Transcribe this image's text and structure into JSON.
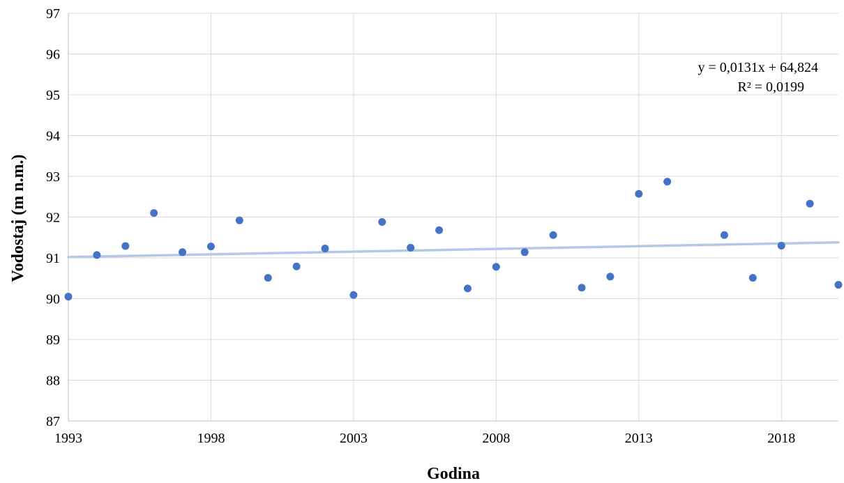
{
  "chart_data": {
    "type": "scatter",
    "xlabel": "Godina",
    "ylabel": "Vodostaj (m n.m.)",
    "xlim": [
      1993,
      2020
    ],
    "ylim": [
      87,
      97
    ],
    "x_ticks": [
      1993,
      1998,
      2003,
      2008,
      2013,
      2018
    ],
    "y_ticks": [
      87,
      88,
      89,
      90,
      91,
      92,
      93,
      94,
      95,
      96,
      97
    ],
    "grid": true,
    "legend": "none",
    "marker_color": "#4472C4",
    "trendline_color": "#B4C7E7",
    "series": [
      {
        "x": [
          1993,
          1994,
          1995,
          1996,
          1997,
          1998,
          1999,
          2000,
          2001,
          2002,
          2003,
          2004,
          2005,
          2006,
          2007,
          2008,
          2009,
          2010,
          2011,
          2012,
          2013,
          2014,
          2016,
          2017,
          2018,
          2019,
          2020
        ],
        "y": [
          90.05,
          91.07,
          91.29,
          92.1,
          91.14,
          91.28,
          91.92,
          90.51,
          90.79,
          91.23,
          90.09,
          91.88,
          91.25,
          91.68,
          90.25,
          90.78,
          91.14,
          91.56,
          90.27,
          90.54,
          92.57,
          92.87,
          91.56,
          90.51,
          91.3,
          92.33,
          90.34
        ]
      }
    ],
    "trendline": {
      "type": "linear",
      "x_range": [
        1993,
        2020
      ],
      "y_range": [
        91.02,
        91.38
      ],
      "equation": "y = 0,0131x + 64,824",
      "r_squared": "R² = 0,0199"
    }
  }
}
